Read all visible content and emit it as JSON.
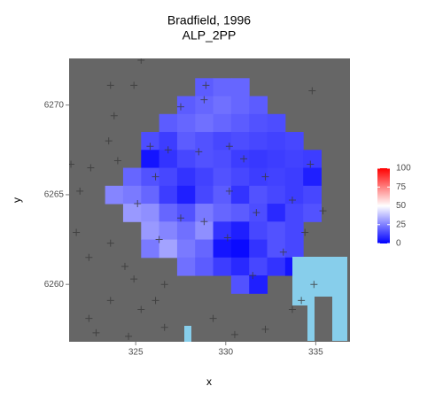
{
  "chart_data": {
    "type": "heatmap",
    "title": "Bradfield, 1996",
    "subtitle": "ALP_2PP",
    "x_label": "x",
    "y_label": "y",
    "xlim": [
      321.3,
      336.9
    ],
    "ylim": [
      6256.8,
      6272.6
    ],
    "xticks": [
      325,
      330,
      335
    ],
    "yticks": [
      6260,
      6265,
      6270
    ],
    "x": [
      321.8,
      322.8,
      323.8,
      324.8,
      325.8,
      326.8,
      327.8,
      328.8,
      329.8,
      330.8,
      331.8,
      332.8,
      333.8,
      334.8,
      335.8,
      336.8
    ],
    "y": [
      6272,
      6271,
      6270,
      6269,
      6268,
      6267,
      6266,
      6265,
      6264,
      6263,
      6262,
      6261,
      6260,
      6259,
      6258,
      6257
    ],
    "z": [
      [
        null,
        null,
        null,
        null,
        null,
        null,
        null,
        null,
        null,
        null,
        null,
        null,
        null,
        null,
        null,
        null
      ],
      [
        null,
        null,
        null,
        null,
        null,
        null,
        null,
        18,
        20,
        20,
        null,
        null,
        null,
        null,
        null,
        null
      ],
      [
        null,
        null,
        null,
        null,
        null,
        null,
        18,
        20,
        22,
        20,
        18,
        null,
        null,
        null,
        null,
        null
      ],
      [
        null,
        null,
        null,
        null,
        null,
        18,
        20,
        22,
        20,
        18,
        16,
        15,
        null,
        null,
        null,
        null
      ],
      [
        null,
        null,
        null,
        null,
        15,
        12,
        18,
        16,
        14,
        15,
        14,
        13,
        14,
        null,
        null,
        null
      ],
      [
        null,
        null,
        null,
        null,
        4,
        10,
        14,
        16,
        15,
        12,
        11,
        12,
        13,
        12,
        null,
        null
      ],
      [
        null,
        null,
        null,
        20,
        16,
        14,
        10,
        13,
        16,
        14,
        12,
        13,
        12,
        6,
        null,
        null
      ],
      [
        null,
        null,
        26,
        24,
        20,
        12,
        6,
        14,
        18,
        10,
        16,
        14,
        12,
        14,
        null,
        null
      ],
      [
        null,
        null,
        null,
        30,
        28,
        20,
        16,
        24,
        20,
        18,
        15,
        8,
        14,
        16,
        null,
        null
      ],
      [
        null,
        null,
        null,
        null,
        30,
        26,
        22,
        28,
        10,
        6,
        14,
        16,
        14,
        null,
        null,
        null
      ],
      [
        null,
        null,
        null,
        null,
        24,
        32,
        24,
        20,
        4,
        2,
        10,
        16,
        14,
        null,
        null,
        null
      ],
      [
        null,
        null,
        null,
        null,
        null,
        null,
        22,
        18,
        12,
        8,
        14,
        10,
        4,
        null,
        null,
        null
      ],
      [
        null,
        null,
        null,
        null,
        null,
        null,
        null,
        null,
        null,
        16,
        6,
        null,
        null,
        null,
        null,
        null
      ],
      [
        null,
        null,
        null,
        null,
        null,
        null,
        null,
        null,
        null,
        null,
        null,
        null,
        null,
        null,
        null,
        null
      ],
      [
        null,
        null,
        null,
        null,
        null,
        null,
        null,
        null,
        null,
        null,
        null,
        null,
        null,
        null,
        null,
        null
      ],
      [
        null,
        null,
        null,
        null,
        null,
        null,
        null,
        null,
        null,
        null,
        null,
        null,
        null,
        null,
        null,
        null
      ]
    ],
    "na_color": "#666666",
    "points": {
      "color": "#3a3a3a",
      "x": [
        325.3,
        323.6,
        324.9,
        328.9,
        334.8,
        323.8,
        327.5,
        328.8,
        323.5,
        325.8,
        324.0,
        326.8,
        328.5,
        330.2,
        331.0,
        321.4,
        334.7,
        322.5,
        326.1,
        332.2,
        321.9,
        325.1,
        330.2,
        333.7,
        327.5,
        328.8,
        331.7,
        335.4,
        321.7,
        326.3,
        330.1,
        334.4,
        322.4,
        323.6,
        324.4,
        333.2,
        324.9,
        326.6,
        331.5,
        334.9,
        323.6,
        326.1,
        322.4,
        325.3,
        333.7,
        326.6,
        322.8,
        324.6,
        330.5,
        332.2,
        329.3,
        334.2
      ],
      "y": [
        6272.5,
        6271.1,
        6271.1,
        6271.1,
        6270.8,
        6269.4,
        6269.9,
        6270.3,
        6268.0,
        6267.7,
        6266.9,
        6267.5,
        6267.4,
        6267.7,
        6267.0,
        6266.7,
        6266.7,
        6266.5,
        6266.0,
        6266.0,
        6265.2,
        6264.5,
        6265.2,
        6264.7,
        6263.7,
        6263.5,
        6264.0,
        6264.1,
        6262.9,
        6262.5,
        6262.6,
        6262.9,
        6261.5,
        6262.3,
        6261.0,
        6261.8,
        6260.3,
        6260.0,
        6260.5,
        6260.0,
        6259.1,
        6259.1,
        6258.1,
        6258.6,
        6258.6,
        6257.6,
        6257.3,
        6257.1,
        6257.2,
        6257.5,
        6258.1,
        6259.1
      ]
    },
    "legend": {
      "position": "right",
      "limits": [
        0,
        100
      ],
      "ticks": [
        0,
        25,
        50,
        75,
        100
      ],
      "low": "#0000ff",
      "mid": "#ffffff",
      "high": "#ff0000",
      "midpoint": 50
    }
  }
}
